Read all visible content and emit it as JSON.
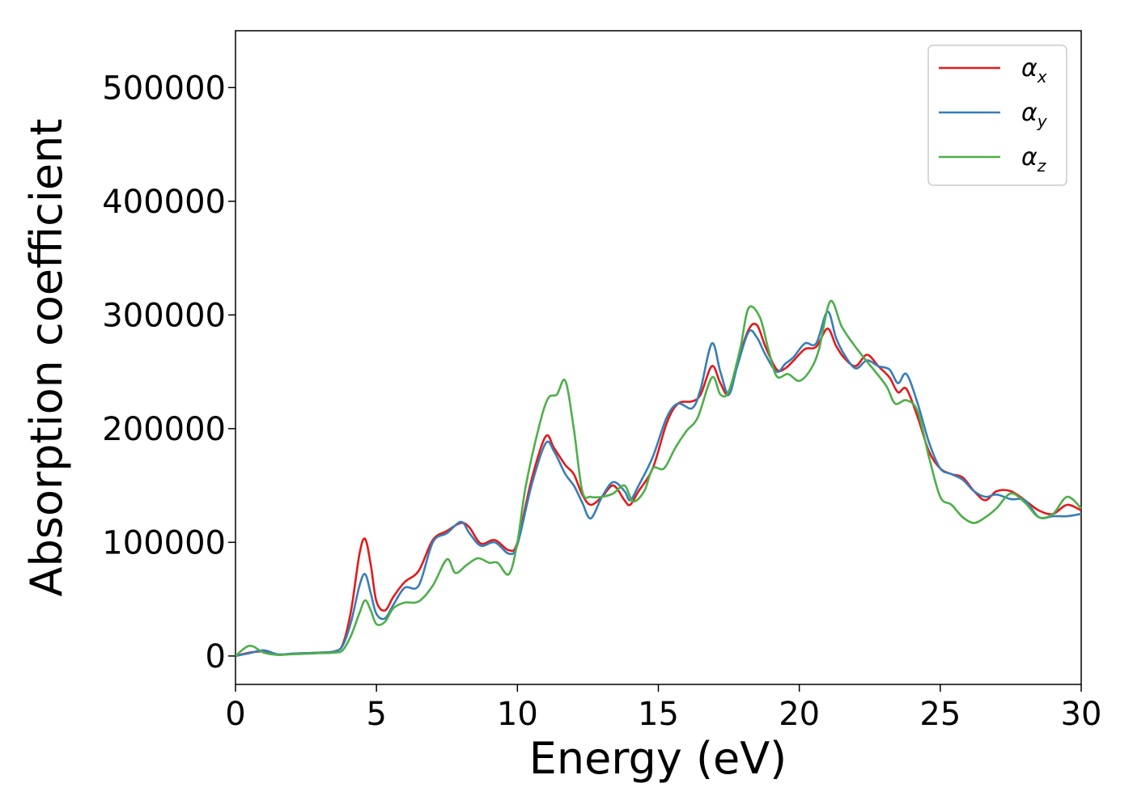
{
  "chart_data": {
    "type": "line",
    "xlabel": "Energy (eV)",
    "ylabel": "Absorption coefficient",
    "xlim": [
      0,
      30
    ],
    "ylim": [
      -25000,
      550000
    ],
    "xticks": [
      0,
      5,
      10,
      15,
      20,
      25,
      30
    ],
    "yticks": [
      0,
      100000,
      200000,
      300000,
      400000,
      500000
    ],
    "grid": false,
    "legend_position": "top-right",
    "series": [
      {
        "name": "α",
        "subscript": "x",
        "color": "#e41a1c",
        "x": [
          0,
          0.5,
          1,
          1.5,
          2,
          2.5,
          3,
          3.5,
          3.8,
          4.1,
          4.4,
          4.6,
          4.8,
          5,
          5.3,
          5.6,
          6,
          6.5,
          7,
          7.5,
          8,
          8.3,
          8.7,
          9.2,
          9.7,
          10,
          10.5,
          11,
          11.3,
          11.7,
          12,
          12.3,
          12.6,
          13,
          13.4,
          13.8,
          14,
          14.3,
          14.8,
          15.3,
          15.7,
          16.2,
          16.5,
          16.9,
          17.2,
          17.5,
          17.8,
          18.2,
          18.5,
          18.8,
          19.2,
          19.5,
          19.8,
          20.2,
          20.6,
          21,
          21.3,
          21.6,
          22,
          22.4,
          22.8,
          23.2,
          23.5,
          23.8,
          24.2,
          24.6,
          25,
          25.4,
          25.8,
          26.2,
          26.6,
          27,
          27.5,
          28,
          28.5,
          29,
          29.5,
          30
        ],
        "y": [
          0,
          3000,
          4000,
          1000,
          2000,
          2500,
          3000,
          4000,
          10000,
          40000,
          90000,
          103000,
          80000,
          48000,
          40000,
          52000,
          65000,
          75000,
          102000,
          110000,
          117000,
          113000,
          99000,
          102000,
          93000,
          100000,
          155000,
          193000,
          183000,
          168000,
          160000,
          142000,
          133000,
          140000,
          150000,
          137000,
          133000,
          145000,
          165000,
          205000,
          222000,
          224000,
          230000,
          255000,
          240000,
          230000,
          258000,
          287000,
          291000,
          272000,
          252000,
          253000,
          260000,
          270000,
          272000,
          288000,
          273000,
          262000,
          255000,
          265000,
          255000,
          245000,
          232000,
          235000,
          210000,
          180000,
          165000,
          160000,
          157000,
          145000,
          137000,
          145000,
          145000,
          137000,
          128000,
          125000,
          133000,
          128000
        ]
      },
      {
        "name": "α",
        "subscript": "y",
        "color": "#377eb8",
        "x": [
          0,
          0.5,
          1,
          1.5,
          2,
          2.5,
          3,
          3.5,
          3.8,
          4.1,
          4.4,
          4.6,
          4.8,
          5,
          5.3,
          5.6,
          6,
          6.5,
          7,
          7.5,
          8,
          8.3,
          8.7,
          9.2,
          9.7,
          10,
          10.5,
          11,
          11.3,
          11.7,
          12,
          12.3,
          12.6,
          13,
          13.4,
          13.8,
          14,
          14.3,
          14.8,
          15.3,
          15.7,
          16.2,
          16.5,
          16.9,
          17.2,
          17.5,
          17.8,
          18.2,
          18.5,
          18.8,
          19.2,
          19.5,
          19.8,
          20.2,
          20.6,
          21,
          21.3,
          21.6,
          22,
          22.4,
          22.8,
          23.2,
          23.5,
          23.8,
          24.2,
          24.6,
          25,
          25.4,
          25.8,
          26.2,
          26.6,
          27,
          27.5,
          28,
          28.5,
          29,
          29.5,
          30
        ],
        "y": [
          0,
          2500,
          5000,
          1500,
          2000,
          2500,
          3000,
          4000,
          9000,
          30000,
          62000,
          72000,
          55000,
          37000,
          33000,
          45000,
          60000,
          62000,
          100000,
          108000,
          118000,
          108000,
          97000,
          100000,
          90000,
          98000,
          150000,
          187000,
          180000,
          160000,
          150000,
          135000,
          121000,
          140000,
          153000,
          145000,
          137000,
          150000,
          175000,
          210000,
          222000,
          218000,
          235000,
          275000,
          250000,
          230000,
          255000,
          285000,
          280000,
          265000,
          250000,
          257000,
          263000,
          275000,
          275000,
          303000,
          280000,
          265000,
          253000,
          260000,
          255000,
          252000,
          240000,
          248000,
          222000,
          188000,
          165000,
          160000,
          155000,
          145000,
          140000,
          142000,
          138000,
          137000,
          122000,
          123000,
          123000,
          125000
        ]
      },
      {
        "name": "α",
        "subscript": "z",
        "color": "#4daf4a",
        "x": [
          0,
          0.5,
          1,
          1.5,
          2,
          2.5,
          3,
          3.5,
          3.8,
          4.1,
          4.4,
          4.6,
          4.8,
          5,
          5.3,
          5.6,
          6,
          6.5,
          7,
          7.5,
          7.8,
          8.2,
          8.6,
          9,
          9.3,
          9.7,
          10,
          10.3,
          10.8,
          11.1,
          11.4,
          11.7,
          12,
          12.3,
          12.6,
          13,
          13.4,
          13.8,
          14.1,
          14.5,
          14.8,
          15.2,
          15.6,
          16,
          16.4,
          16.9,
          17.2,
          17.5,
          17.9,
          18.2,
          18.6,
          18.9,
          19.2,
          19.6,
          20,
          20.4,
          20.7,
          21.1,
          21.5,
          21.9,
          22.3,
          22.7,
          23.1,
          23.4,
          23.8,
          24.2,
          24.6,
          25,
          25.4,
          25.8,
          26.2,
          26.6,
          27,
          27.5,
          28,
          28.5,
          29,
          29.5,
          30
        ],
        "y": [
          0,
          9000,
          3000,
          1000,
          1500,
          2000,
          2500,
          3000,
          5000,
          18000,
          38000,
          49000,
          40000,
          28000,
          30000,
          42000,
          47000,
          48000,
          62000,
          85000,
          73000,
          80000,
          86000,
          82000,
          82000,
          72000,
          100000,
          150000,
          205000,
          227000,
          230000,
          242000,
          200000,
          145000,
          140000,
          140000,
          143000,
          150000,
          136000,
          145000,
          165000,
          165000,
          183000,
          198000,
          210000,
          245000,
          230000,
          233000,
          270000,
          306000,
          298000,
          270000,
          246000,
          248000,
          242000,
          252000,
          270000,
          312000,
          290000,
          275000,
          262000,
          250000,
          237000,
          222000,
          225000,
          215000,
          175000,
          140000,
          133000,
          122000,
          117000,
          122000,
          130000,
          143000,
          135000,
          122000,
          125000,
          140000,
          130000
        ]
      }
    ]
  }
}
